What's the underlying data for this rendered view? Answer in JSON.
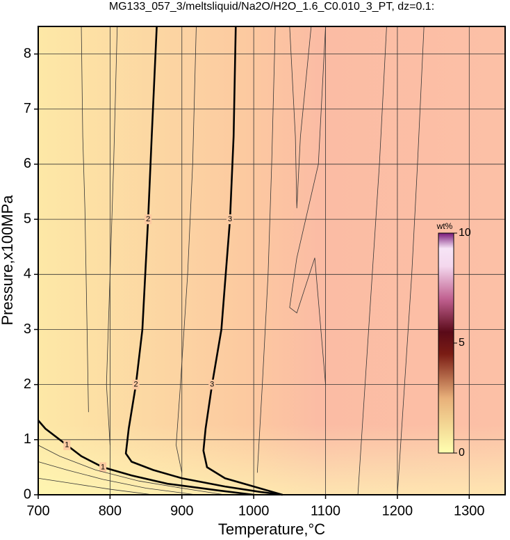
{
  "chart_data": {
    "type": "contour",
    "title": "MG133_057_3/meltsliquid/Na2O/H2O_1.6_C0.010_3_PT, dz=0.1:",
    "x_label": "Temperature,°C",
    "y_label": "Pressure,x100MPa",
    "xlim": [
      700,
      1350
    ],
    "ylim": [
      0,
      8.5
    ],
    "xticks": [
      700,
      800,
      900,
      1000,
      1100,
      1200,
      1300
    ],
    "yticks": [
      0,
      1,
      2,
      3,
      4,
      5,
      6,
      7,
      8
    ],
    "grid": true,
    "series": [
      {
        "name": "1",
        "color": "#000000",
        "x": [
          700,
          710,
          740,
          760,
          790,
          830,
          880,
          950,
          1000
        ],
        "y": [
          1.35,
          1.2,
          0.9,
          0.7,
          0.5,
          0.35,
          0.2,
          0.08,
          0
        ]
      },
      {
        "name": "2",
        "color": "#000000",
        "x": [
          865,
          858,
          853,
          845,
          836,
          826,
          822,
          830,
          860,
          900,
          960,
          1010,
          1040
        ],
        "y": [
          8.5,
          6.5,
          5,
          3,
          2,
          1.2,
          0.75,
          0.6,
          0.45,
          0.3,
          0.15,
          0.05,
          0
        ]
      },
      {
        "name": "3",
        "color": "#000000",
        "x": [
          975,
          972,
          967,
          955,
          942,
          933,
          930,
          935,
          960,
          1000,
          1040
        ],
        "y": [
          8.5,
          6.5,
          5,
          3,
          2,
          1.2,
          0.8,
          0.5,
          0.3,
          0.15,
          0
        ]
      },
      {
        "color": "#333333",
        "x": [
          700,
          730,
          780,
          840,
          900,
          960
        ],
        "y": [
          0.9,
          0.7,
          0.45,
          0.25,
          0.12,
          0
        ]
      },
      {
        "color": "#333333",
        "x": [
          700,
          740,
          790,
          850,
          920
        ],
        "y": [
          0.6,
          0.45,
          0.28,
          0.12,
          0
        ]
      },
      {
        "color": "#333333",
        "x": [
          700,
          750,
          800,
          860
        ],
        "y": [
          0.3,
          0.2,
          0.1,
          0
        ]
      },
      {
        "color": "#333333",
        "x": [
          760,
          762,
          765,
          768,
          770
        ],
        "y": [
          8.5,
          6.5,
          5.2,
          3,
          1.5
        ]
      },
      {
        "color": "#333333",
        "x": [
          810,
          805,
          800,
          795,
          800
        ],
        "y": [
          8.5,
          6,
          4,
          2,
          0.9
        ]
      },
      {
        "color": "#333333",
        "x": [
          920,
          915,
          908,
          898,
          892,
          900
        ],
        "y": [
          8.5,
          6,
          4,
          2,
          0.9,
          0.4
        ]
      },
      {
        "color": "#333333",
        "x": [
          1030,
          1025,
          1020,
          1012,
          1005
        ],
        "y": [
          8.5,
          6,
          4,
          2,
          0.4
        ]
      },
      {
        "color": "#333333",
        "x": [
          1050,
          1058,
          1060,
          1065,
          1080
        ],
        "y": [
          8.5,
          6.5,
          5.2,
          6.5,
          8.5
        ]
      },
      {
        "color": "#333333",
        "x": [
          1100,
          1090,
          1060,
          1050,
          1060,
          1085,
          1100
        ],
        "y": [
          8.5,
          6,
          4.3,
          3.4,
          3.3,
          4.3,
          2
        ]
      },
      {
        "color": "#333333",
        "x": [
          1145,
          1155,
          1165,
          1175,
          1185
        ],
        "y": [
          0,
          2,
          4,
          6,
          8.5
        ]
      },
      {
        "color": "#333333",
        "x": [
          1200,
          1210,
          1220,
          1228,
          1237
        ],
        "y": [
          0,
          2,
          4,
          6,
          8.5
        ]
      }
    ],
    "colorbar": {
      "label": "wt%",
      "lim": [
        0,
        10
      ],
      "ticks": [
        0,
        5,
        10
      ]
    }
  }
}
